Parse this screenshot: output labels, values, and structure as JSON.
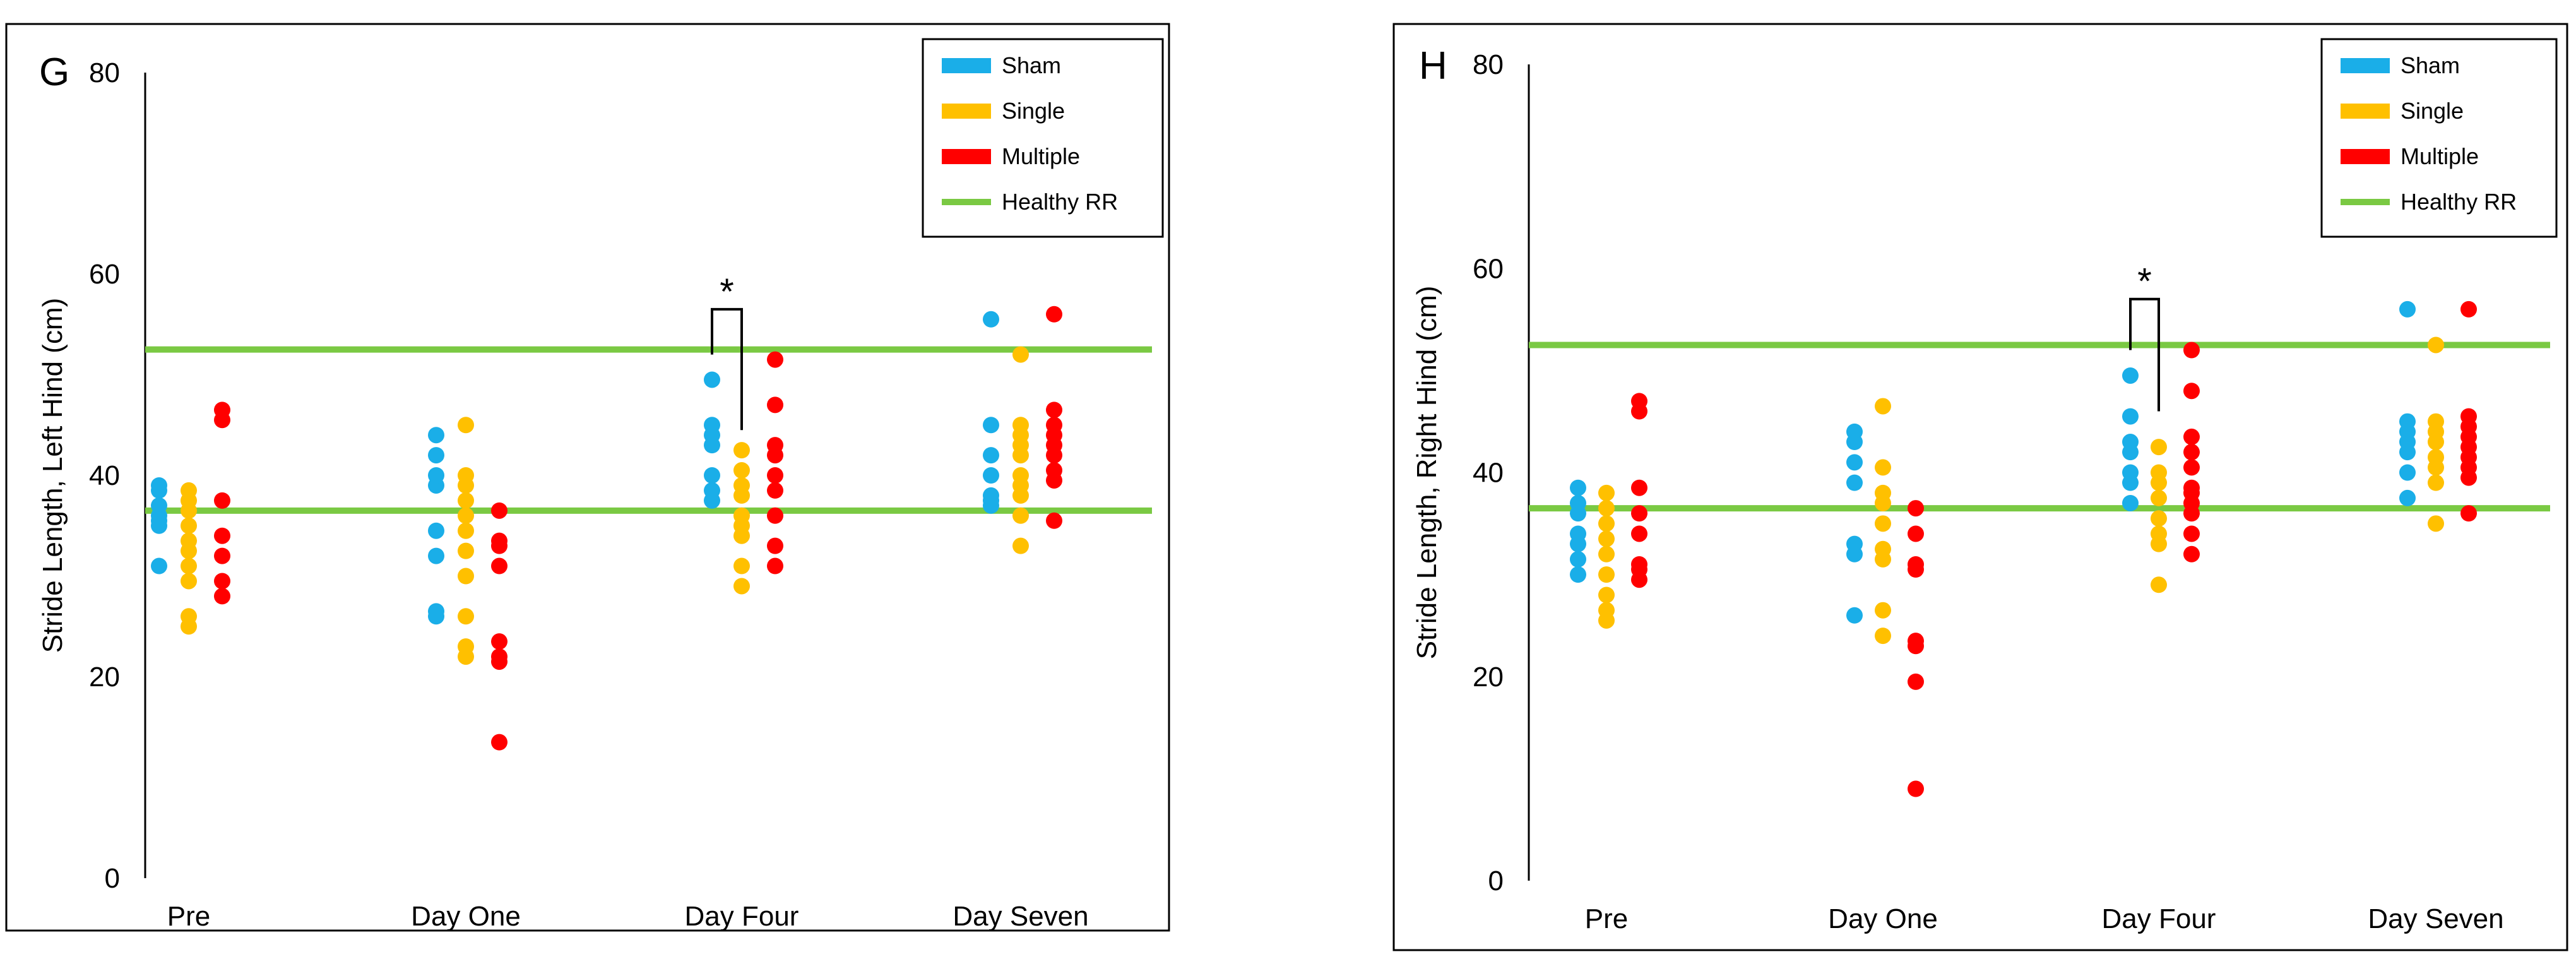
{
  "chart_data": [
    {
      "type": "scatter",
      "panel_letter": "G",
      "ylabel": "Stride Length, Left Hind (cm)",
      "ylim": [
        0,
        80
      ],
      "yticks": [
        0,
        20,
        40,
        60,
        80
      ],
      "categories": [
        "Pre",
        "Day One",
        "Day Four",
        "Day Seven"
      ],
      "series": [
        {
          "name": "Sham",
          "color": "#1aaee8",
          "values": [
            [
              31,
              35,
              35.5,
              36,
              37,
              38.5,
              39
            ],
            [
              26,
              26.5,
              32,
              34.5,
              39,
              40,
              42,
              44
            ],
            [
              37.5,
              38.5,
              40,
              43,
              44,
              45,
              49.5
            ],
            [
              37,
              37.5,
              38,
              40,
              42,
              45,
              55.5
            ]
          ]
        },
        {
          "name": "Single",
          "color": "#ffc000",
          "values": [
            [
              25,
              26,
              29.5,
              31,
              32.5,
              33.5,
              35,
              36.5,
              37.5,
              38.5
            ],
            [
              22,
              23,
              26,
              30,
              32.5,
              34.5,
              36,
              37.5,
              39,
              40,
              45
            ],
            [
              29,
              31,
              34,
              35,
              36,
              38,
              39,
              40.5,
              42.5
            ],
            [
              33,
              36,
              38,
              39,
              40,
              42,
              43,
              44,
              45,
              52
            ]
          ]
        },
        {
          "name": "Multiple",
          "color": "#ff0000",
          "values": [
            [
              28,
              29.5,
              32,
              34,
              37.5,
              45.5,
              46.5
            ],
            [
              13.5,
              21.5,
              22,
              23.5,
              31,
              33,
              33.5,
              36.5
            ],
            [
              31,
              33,
              36,
              38.5,
              40,
              42,
              43,
              47,
              51.5
            ],
            [
              35.5,
              39.5,
              40.5,
              42,
              43,
              44,
              45,
              46.5,
              56
            ]
          ]
        }
      ],
      "legend": [
        "Sham",
        "Single",
        "Multiple",
        "Healthy RR"
      ],
      "healthy_rr": {
        "label": "Healthy RR",
        "color": "#7ac943",
        "lower": 36.5,
        "upper": 52.5
      },
      "significance": {
        "label": "*",
        "category": "Day Four",
        "between": [
          "Sham",
          "Single"
        ],
        "left_end": 52,
        "right_end": 44.5,
        "top": 56.5
      }
    },
    {
      "type": "scatter",
      "panel_letter": "H",
      "ylabel": "Stride Length, Right Hind (cm)",
      "ylim": [
        0,
        80
      ],
      "yticks": [
        0,
        20,
        40,
        60,
        80
      ],
      "categories": [
        "Pre",
        "Day One",
        "Day Four",
        "Day Seven"
      ],
      "series": [
        {
          "name": "Sham",
          "color": "#1aaee8",
          "values": [
            [
              30,
              31.5,
              33,
              34,
              36,
              37,
              38.5
            ],
            [
              26,
              32,
              33,
              39,
              41,
              43,
              44
            ],
            [
              37,
              39,
              40,
              42,
              43,
              45.5,
              49.5
            ],
            [
              37.5,
              40,
              42,
              43,
              44,
              45,
              56
            ]
          ]
        },
        {
          "name": "Single",
          "color": "#ffc000",
          "values": [
            [
              25.5,
              26.5,
              28,
              30,
              32,
              33.5,
              35,
              36.5,
              38
            ],
            [
              24,
              26.5,
              31.5,
              32.5,
              35,
              37,
              38,
              40.5,
              46.5
            ],
            [
              29,
              33,
              34,
              35.5,
              37.5,
              39,
              40,
              42.5
            ],
            [
              35,
              39,
              40.5,
              41.5,
              43,
              44,
              45,
              52.5
            ]
          ]
        },
        {
          "name": "Multiple",
          "color": "#ff0000",
          "values": [
            [
              29.5,
              30.5,
              31,
              34,
              36,
              38.5,
              46,
              47
            ],
            [
              9,
              19.5,
              23,
              23.5,
              30.5,
              31,
              34,
              36.5
            ],
            [
              32,
              34,
              36,
              37,
              38,
              38.5,
              40.5,
              42,
              43.5,
              48,
              52
            ],
            [
              36,
              39.5,
              40.5,
              41.5,
              42.5,
              43.5,
              44.5,
              45.5,
              56
            ]
          ]
        }
      ],
      "legend": [
        "Sham",
        "Single",
        "Multiple",
        "Healthy RR"
      ],
      "healthy_rr": {
        "label": "Healthy RR",
        "color": "#7ac943",
        "lower": 36.5,
        "upper": 52.5
      },
      "significance": {
        "label": "*",
        "category": "Day Four",
        "between": [
          "Sham",
          "Single"
        ],
        "left_end": 52,
        "right_end": 46,
        "top": 57
      }
    }
  ]
}
